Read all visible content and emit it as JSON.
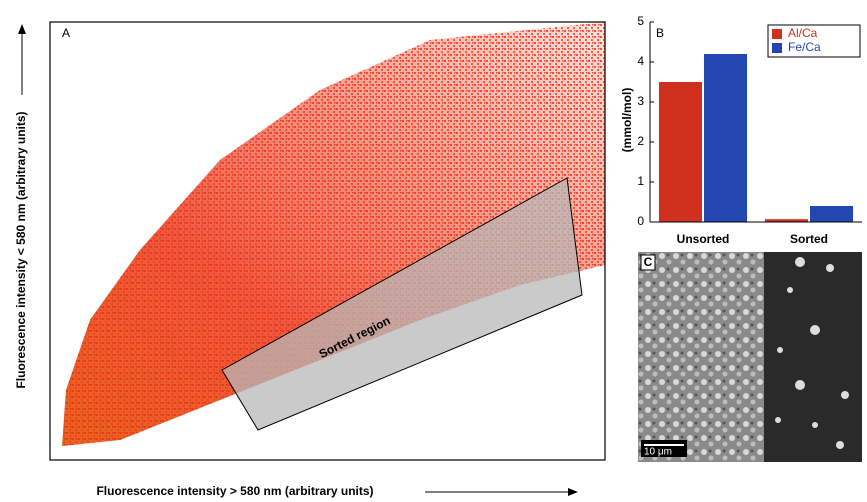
{
  "chart_data": [
    {
      "type": "scatter",
      "panel_label": "A",
      "x_label": "Fluorescence intensity > 580 nm (arbitrary units)",
      "y_label": "Fluorescence intensity < 580 nm (arbitrary units)",
      "annotation": "Sorted region"
    },
    {
      "type": "bar",
      "panel_label": "B",
      "y_label": "(mmol/mol)",
      "categories": [
        "Unsorted",
        "Sorted"
      ],
      "series": [
        {
          "name": "Al/Ca",
          "color": "#d0301e",
          "values": [
            3.5,
            0.07
          ]
        },
        {
          "name": "Fe/Ca",
          "color": "#2446b0",
          "values": [
            4.2,
            0.4
          ]
        }
      ],
      "ylim": [
        0,
        5
      ],
      "yticks": [
        0,
        1,
        2,
        3,
        4,
        5
      ]
    }
  ],
  "image": {
    "panel_label": "C",
    "scale_bar": "10 μm"
  }
}
